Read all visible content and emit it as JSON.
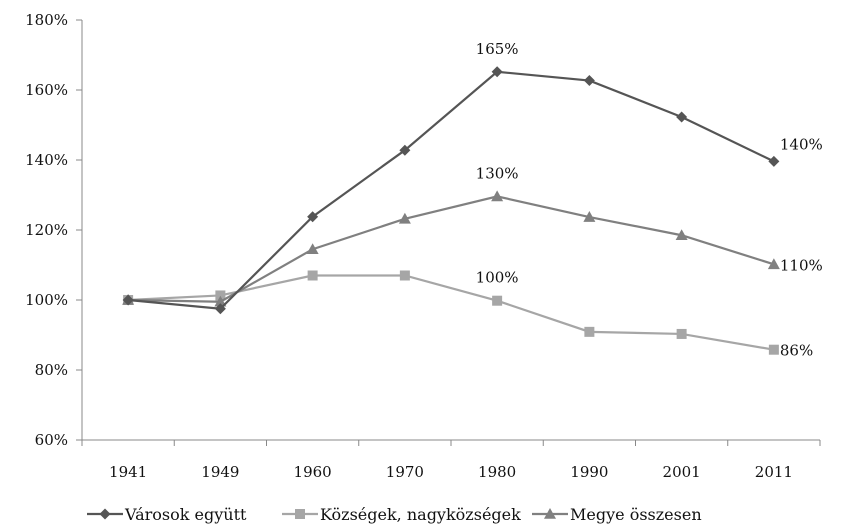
{
  "chart_data": {
    "type": "line",
    "categories": [
      "1941",
      "1949",
      "1960",
      "1970",
      "1980",
      "1990",
      "2001",
      "2011"
    ],
    "ylim": [
      60,
      180
    ],
    "yticks": [
      "60%",
      "80%",
      "100%",
      "120%",
      "140%",
      "160%",
      "180%"
    ],
    "grid": false,
    "legend_position": "bottom",
    "series": [
      {
        "name": "Városok együtt",
        "marker": "diamond",
        "color": "#555555",
        "values": [
          100,
          97.5,
          123.8,
          142.8,
          165.2,
          162.7,
          152.3,
          139.6
        ]
      },
      {
        "name": "Községek, nagyközségek",
        "marker": "square",
        "color": "#a6a6a6",
        "values": [
          100,
          101.3,
          107,
          107,
          99.8,
          90.9,
          90.3,
          85.8
        ]
      },
      {
        "name": "Megye összesen",
        "marker": "triangle",
        "color": "#808080",
        "values": [
          100,
          99.5,
          114.5,
          123.2,
          129.6,
          123.7,
          118.5,
          110.2
        ]
      }
    ],
    "annotations": [
      {
        "text": "165%",
        "series": 0,
        "index": 4
      },
      {
        "text": "140%",
        "series": 0,
        "index": 7
      },
      {
        "text": "130%",
        "series": 2,
        "index": 4
      },
      {
        "text": "110%",
        "series": 2,
        "index": 7
      },
      {
        "text": "100%",
        "series": 1,
        "index": 4
      },
      {
        "text": "86%",
        "series": 1,
        "index": 7
      }
    ]
  }
}
